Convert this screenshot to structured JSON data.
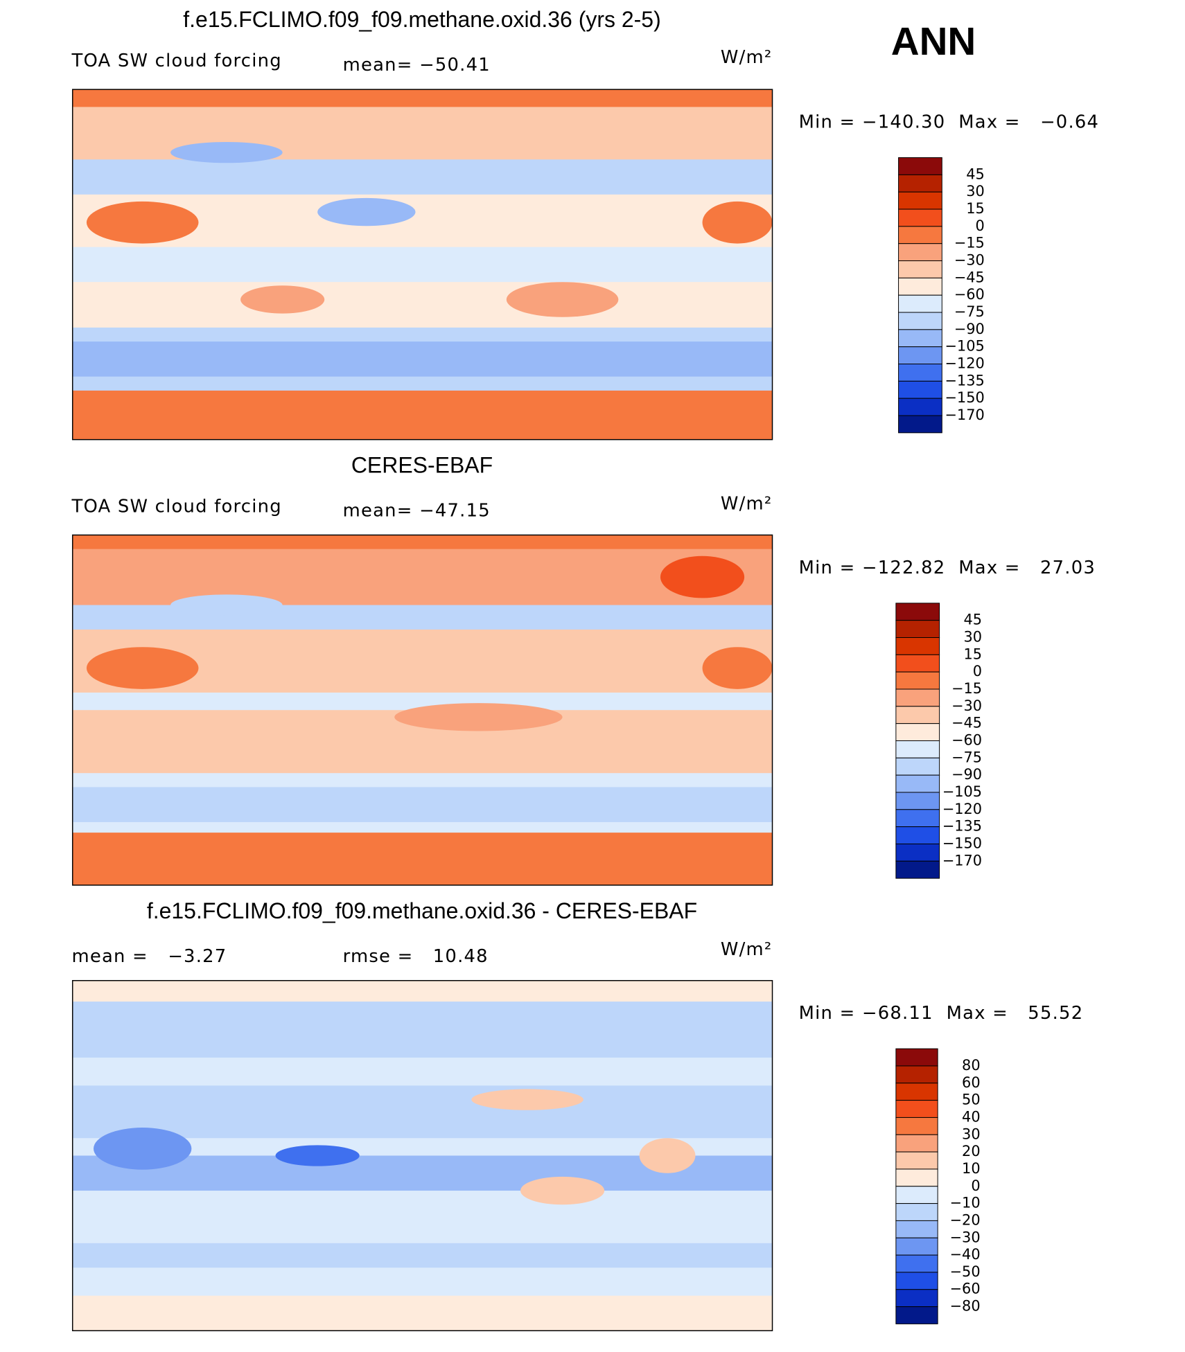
{
  "header": {
    "title": "ANN"
  },
  "colors": [
    "#8b0a0a",
    "#b52200",
    "#d93500",
    "#f24f1c",
    "#f6783f",
    "#f9a27c",
    "#fcc9ab",
    "#feebdc",
    "#dcebfc",
    "#bdd6fa",
    "#98b9f7",
    "#6d96f2",
    "#3f70ef",
    "#1f4fe6",
    "#0b2fc4",
    "#02198a"
  ],
  "panels": [
    {
      "title": "f.e15.FCLIMO.f09_f09.methane.oxid.36 (yrs 2-5)",
      "left": "TOA SW cloud forcing",
      "center": "mean= −50.41",
      "units": "W/m²",
      "min_max": "Min = −140.30  Max =   −0.64",
      "colorbar_labels": [
        "45",
        "30",
        "15",
        "0",
        "−15",
        "−30",
        "−45",
        "−60",
        "−75",
        "−90",
        "−105",
        "−120",
        "−135",
        "−150",
        "−170"
      ]
    },
    {
      "title": "CERES-EBAF",
      "left": "TOA SW cloud forcing",
      "center": "mean= −47.15",
      "units": "W/m²",
      "min_max": "Min = −122.82  Max =   27.03",
      "colorbar_labels": [
        "45",
        "30",
        "15",
        "0",
        "−15",
        "−30",
        "−45",
        "−60",
        "−75",
        "−90",
        "−105",
        "−120",
        "−135",
        "−150",
        "−170"
      ]
    },
    {
      "title": "f.e15.FCLIMO.f09_f09.methane.oxid.36 - CERES-EBAF",
      "left": "mean =   −3.27",
      "center": "rmse =   10.48",
      "units": "W/m²",
      "min_max": "Min = −68.11  Max =   55.52",
      "colorbar_labels": [
        "80",
        "60",
        "50",
        "40",
        "30",
        "20",
        "10",
        "0",
        "−10",
        "−20",
        "−30",
        "−40",
        "−50",
        "−60",
        "−80"
      ]
    }
  ]
}
